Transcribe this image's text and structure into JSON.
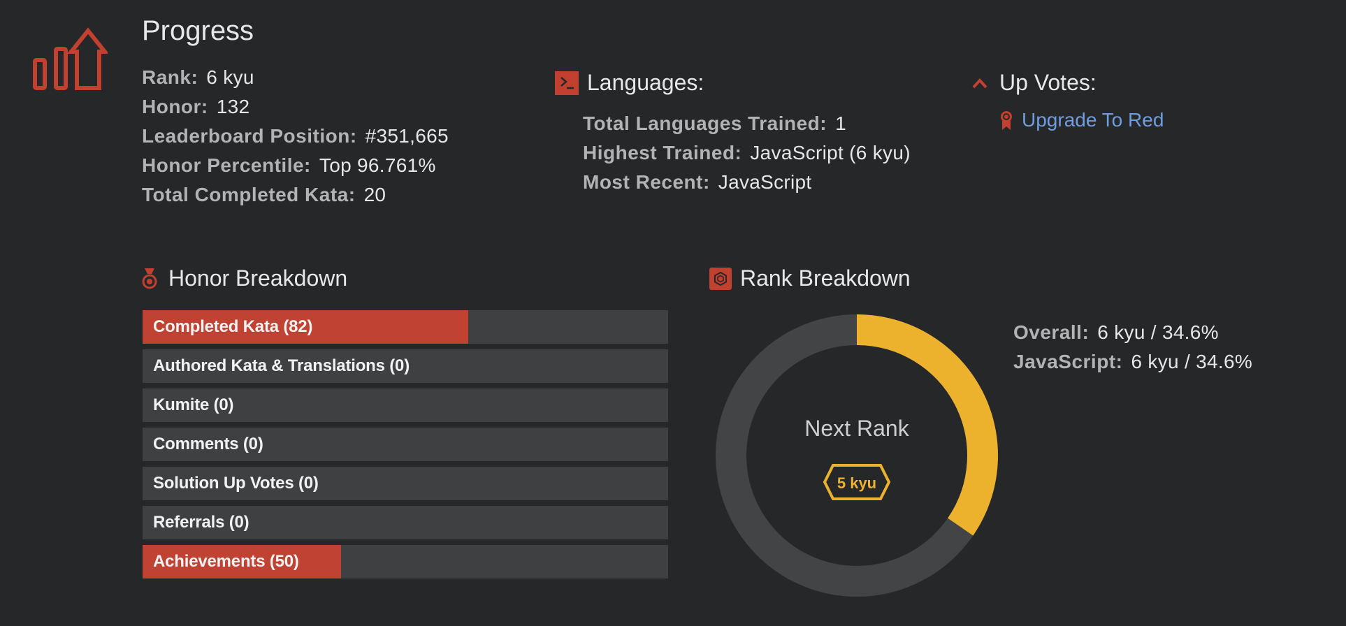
{
  "progress": {
    "title": "Progress",
    "stats": [
      {
        "label": "Rank:",
        "value": "6 kyu"
      },
      {
        "label": "Honor:",
        "value": "132"
      },
      {
        "label": "Leaderboard Position:",
        "value": "#351,665"
      },
      {
        "label": "Honor Percentile:",
        "value": "Top 96.761%"
      },
      {
        "label": "Total Completed Kata:",
        "value": "20"
      }
    ]
  },
  "languages": {
    "title": "Languages:",
    "icon": "terminal-icon",
    "stats": [
      {
        "label": "Total Languages Trained:",
        "value": "1"
      },
      {
        "label": "Highest Trained:",
        "value": "JavaScript (6 kyu)"
      },
      {
        "label": "Most Recent:",
        "value": "JavaScript"
      }
    ]
  },
  "upvotes": {
    "title": "Up Votes:",
    "icon": "chevron-up-icon",
    "link_icon": "ribbon-icon",
    "link_label": "Upgrade To Red"
  },
  "honor_breakdown": {
    "title": "Honor Breakdown",
    "icon": "medal-icon",
    "items": [
      {
        "label": "Completed Kata (82)",
        "fill": 0.62
      },
      {
        "label": "Authored Kata & Translations (0)",
        "fill": 0
      },
      {
        "label": "Kumite (0)",
        "fill": 0
      },
      {
        "label": "Comments (0)",
        "fill": 0
      },
      {
        "label": "Solution Up Votes (0)",
        "fill": 0
      },
      {
        "label": "Referrals (0)",
        "fill": 0
      },
      {
        "label": "Achievements (50)",
        "fill": 0.378
      }
    ]
  },
  "rank_breakdown": {
    "title": "Rank Breakdown",
    "icon": "hexagon-icon",
    "next_rank_label": "Next Rank",
    "next_rank_badge": "5 kyu",
    "progress": 0.346,
    "stats": [
      {
        "label": "Overall:",
        "value": "6 kyu / 34.6%"
      },
      {
        "label": "JavaScript:",
        "value": "6 kyu / 34.6%"
      }
    ]
  },
  "colors": {
    "accent": "#c24030",
    "ring_progress": "#ecb22e",
    "ring_track": "#434446",
    "link": "#6f9de0",
    "background": "#262729"
  }
}
